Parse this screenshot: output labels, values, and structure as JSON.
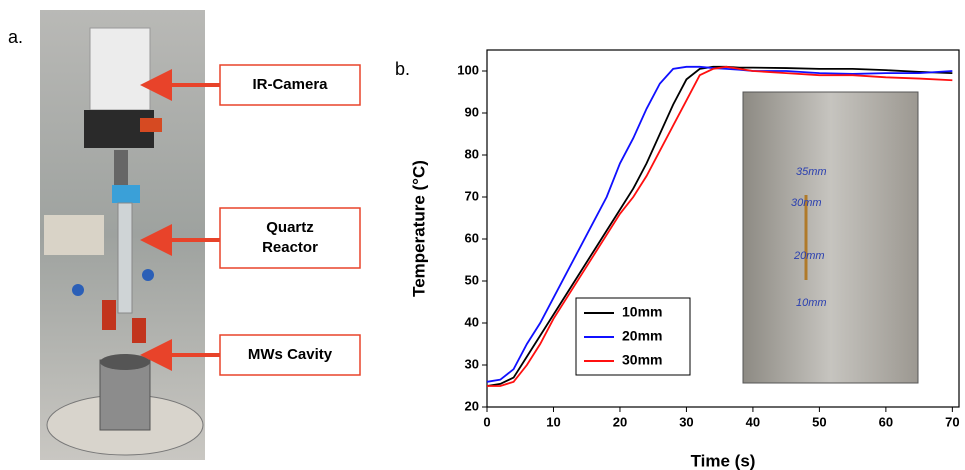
{
  "panel_labels": [
    "a.",
    "b."
  ],
  "callouts": [
    [
      "IR-Camera"
    ],
    [
      "Quartz",
      "Reactor"
    ],
    [
      "MWs Cavity"
    ]
  ],
  "chart_data": {
    "type": "line",
    "xlabel": "Time (s)",
    "ylabel": "Temperature (°C)",
    "x": [
      0,
      2,
      4,
      6,
      8,
      10,
      12,
      14,
      16,
      18,
      20,
      22,
      24,
      26,
      28,
      30,
      32,
      34,
      36,
      38,
      40,
      45,
      50,
      55,
      60,
      65,
      70
    ],
    "series": [
      {
        "name": "10mm",
        "color": "#000000",
        "values": [
          25,
          25.5,
          27,
          32,
          37,
          42,
          47,
          52,
          57,
          62,
          67,
          72,
          78,
          85,
          92,
          98,
          100.5,
          101,
          101,
          100.8,
          100.8,
          100.7,
          100.5,
          100.5,
          100.2,
          99.8,
          99.5
        ]
      },
      {
        "name": "20mm",
        "color": "#1010ff",
        "values": [
          26,
          26.5,
          29,
          35,
          40,
          46,
          52,
          58,
          64,
          70,
          78,
          84,
          91,
          97,
          100.5,
          101,
          101,
          100.7,
          100.5,
          100.3,
          100,
          100,
          99.5,
          99.3,
          99.5,
          99.5,
          100
        ]
      },
      {
        "name": "30mm",
        "color": "#ff1010",
        "values": [
          25,
          25,
          26,
          30,
          35,
          41,
          46,
          51,
          56,
          61,
          66,
          70,
          75,
          81,
          87,
          93,
          99,
          100.5,
          101,
          100.5,
          100,
          99.5,
          99,
          99,
          98.5,
          98.2,
          97.8
        ]
      }
    ],
    "xlim": [
      0,
      71
    ],
    "ylim": [
      20,
      105
    ],
    "xticks": [
      0,
      10,
      20,
      30,
      40,
      50,
      60,
      70
    ],
    "yticks": [
      20,
      30,
      40,
      50,
      60,
      70,
      80,
      90,
      100
    ],
    "annotations": [
      "35mm",
      "30mm",
      "20mm",
      "10mm"
    ]
  }
}
